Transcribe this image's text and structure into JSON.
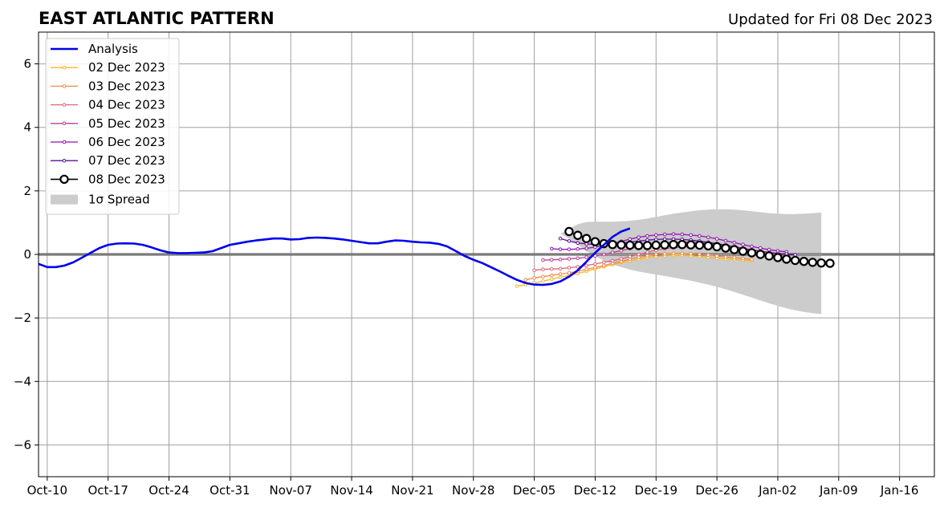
{
  "chart_data": {
    "type": "line",
    "title": "EAST ATLANTIC PATTERN",
    "subtitle": "Updated for Fri 08 Dec 2023",
    "xlabel": "",
    "ylabel": "",
    "xlim": [
      "2023-10-09",
      "2024-01-20"
    ],
    "ylim": [
      -7,
      7
    ],
    "y_ticks": [
      -6,
      -4,
      -2,
      0,
      2,
      4,
      6
    ],
    "y_tick_labels": [
      "−6",
      "−4",
      "−2",
      "0",
      "2",
      "4",
      "6"
    ],
    "x_ticks": [
      "2023-10-10",
      "2023-10-17",
      "2023-10-24",
      "2023-10-31",
      "2023-11-07",
      "2023-11-14",
      "2023-11-21",
      "2023-11-28",
      "2023-12-05",
      "2023-12-12",
      "2023-12-19",
      "2023-12-26",
      "2024-01-02",
      "2024-01-09",
      "2024-01-16"
    ],
    "x_tick_labels": [
      "Oct-10",
      "Oct-17",
      "Oct-24",
      "Oct-31",
      "Nov-07",
      "Nov-14",
      "Nov-21",
      "Nov-28",
      "Dec-05",
      "Dec-12",
      "Dec-19",
      "Dec-26",
      "Jan-02",
      "Jan-09",
      "Jan-16"
    ],
    "grid": true,
    "zero_line": true,
    "legend_position": "upper-left",
    "analysis": {
      "name": "Analysis",
      "color": "#0000ee",
      "start": "2023-10-09",
      "values": [
        -0.3,
        -0.4,
        -0.4,
        -0.35,
        -0.25,
        -0.1,
        0.05,
        0.2,
        0.3,
        0.34,
        0.35,
        0.34,
        0.3,
        0.22,
        0.13,
        0.06,
        0.04,
        0.04,
        0.05,
        0.06,
        0.1,
        0.2,
        0.3,
        0.35,
        0.4,
        0.44,
        0.47,
        0.5,
        0.5,
        0.47,
        0.48,
        0.52,
        0.53,
        0.52,
        0.5,
        0.47,
        0.43,
        0.39,
        0.35,
        0.35,
        0.4,
        0.44,
        0.43,
        0.4,
        0.38,
        0.37,
        0.33,
        0.25,
        0.1,
        -0.05,
        -0.17,
        -0.27,
        -0.4,
        -0.53,
        -0.67,
        -0.8,
        -0.9,
        -0.95,
        -0.96,
        -0.93,
        -0.85,
        -0.7,
        -0.5,
        -0.23,
        0.05,
        0.3,
        0.55,
        0.72,
        0.82
      ]
    },
    "spread": {
      "name": "1σ Spread",
      "color": "#cccccc",
      "start": "2023-12-08",
      "upper": [
        0.65,
        0.8,
        0.95,
        1.02,
        1.03,
        1.03,
        1.03,
        1.04,
        1.06,
        1.09,
        1.13,
        1.18,
        1.23,
        1.28,
        1.32,
        1.36,
        1.39,
        1.41,
        1.42,
        1.42,
        1.41,
        1.39,
        1.36,
        1.33,
        1.3,
        1.28,
        1.27,
        1.27,
        1.28,
        1.3,
        1.32
      ],
      "lower": [
        0.65,
        0.5,
        0.3,
        0.1,
        -0.05,
        -0.2,
        -0.32,
        -0.4,
        -0.48,
        -0.54,
        -0.59,
        -0.64,
        -0.68,
        -0.73,
        -0.78,
        -0.83,
        -0.89,
        -0.95,
        -1.02,
        -1.1,
        -1.18,
        -1.27,
        -1.36,
        -1.45,
        -1.54,
        -1.62,
        -1.7,
        -1.76,
        -1.81,
        -1.85,
        -1.88
      ]
    },
    "series": [
      {
        "name": "02 Dec 2023",
        "color": "#f5b820",
        "start": "2023-12-03",
        "values": [
          -1.0,
          -0.95,
          -0.9,
          -0.84,
          -0.78,
          -0.72,
          -0.66,
          -0.6,
          -0.53,
          -0.46,
          -0.39,
          -0.32,
          -0.25,
          -0.2,
          -0.15,
          -0.1,
          -0.06,
          -0.04,
          -0.03,
          -0.03,
          -0.04,
          -0.06,
          -0.09,
          -0.12,
          -0.14,
          -0.16,
          -0.18,
          -0.2
        ]
      },
      {
        "name": "03 Dec 2023",
        "color": "#f08a48",
        "start": "2023-12-04",
        "values": [
          -0.8,
          -0.74,
          -0.7,
          -0.66,
          -0.62,
          -0.58,
          -0.53,
          -0.47,
          -0.41,
          -0.35,
          -0.28,
          -0.22,
          -0.15,
          -0.09,
          -0.04,
          0.0,
          0.02,
          0.03,
          0.03,
          0.02,
          0.0,
          -0.02,
          -0.05,
          -0.08,
          -0.1,
          -0.13,
          -0.16
        ]
      },
      {
        "name": "04 Dec 2023",
        "color": "#e06478",
        "start": "2023-12-05",
        "values": [
          -0.5,
          -0.47,
          -0.46,
          -0.45,
          -0.42,
          -0.39,
          -0.35,
          -0.3,
          -0.25,
          -0.2,
          -0.14,
          -0.07,
          0.0,
          0.07,
          0.13,
          0.18,
          0.21,
          0.23,
          0.24,
          0.24,
          0.23,
          0.21,
          0.18,
          0.15,
          0.12,
          0.09,
          0.06,
          0.03,
          0.0
        ]
      },
      {
        "name": "05 Dec 2023",
        "color": "#bb3c96",
        "start": "2023-12-06",
        "values": [
          -0.18,
          -0.17,
          -0.16,
          -0.14,
          -0.12,
          -0.09,
          -0.05,
          0.0,
          0.06,
          0.12,
          0.18,
          0.24,
          0.29,
          0.33,
          0.36,
          0.38,
          0.39,
          0.39,
          0.37,
          0.35,
          0.32,
          0.28,
          0.24,
          0.19,
          0.14,
          0.1,
          0.06,
          0.02,
          -0.02
        ]
      },
      {
        "name": "06 Dec 2023",
        "color": "#9212b0",
        "start": "2023-12-07",
        "values": [
          0.18,
          0.16,
          0.16,
          0.17,
          0.19,
          0.23,
          0.28,
          0.34,
          0.41,
          0.48,
          0.54,
          0.58,
          0.61,
          0.63,
          0.64,
          0.63,
          0.61,
          0.58,
          0.54,
          0.49,
          0.43,
          0.37,
          0.31,
          0.25,
          0.2,
          0.15,
          0.11,
          0.08
        ]
      },
      {
        "name": "07 Dec 2023",
        "color": "#5a0e96",
        "start": "2023-12-08",
        "values": [
          0.5,
          0.42,
          0.36,
          0.33,
          0.31,
          0.31,
          0.33,
          0.36,
          0.39,
          0.42,
          0.45,
          0.47,
          0.48,
          0.48,
          0.47,
          0.45,
          0.42,
          0.38,
          0.34,
          0.29,
          0.24,
          0.19,
          0.14,
          0.1,
          0.06,
          0.03,
          0.01,
          -0.01
        ]
      },
      {
        "name": "08 Dec 2023",
        "color": "#000000",
        "start": "2023-12-09",
        "values": [
          0.72,
          0.6,
          0.5,
          0.4,
          0.34,
          0.31,
          0.3,
          0.29,
          0.28,
          0.28,
          0.29,
          0.3,
          0.31,
          0.31,
          0.3,
          0.29,
          0.27,
          0.24,
          0.2,
          0.15,
          0.1,
          0.05,
          0.0,
          -0.05,
          -0.1,
          -0.15,
          -0.19,
          -0.22,
          -0.25,
          -0.27,
          -0.28
        ]
      }
    ]
  }
}
